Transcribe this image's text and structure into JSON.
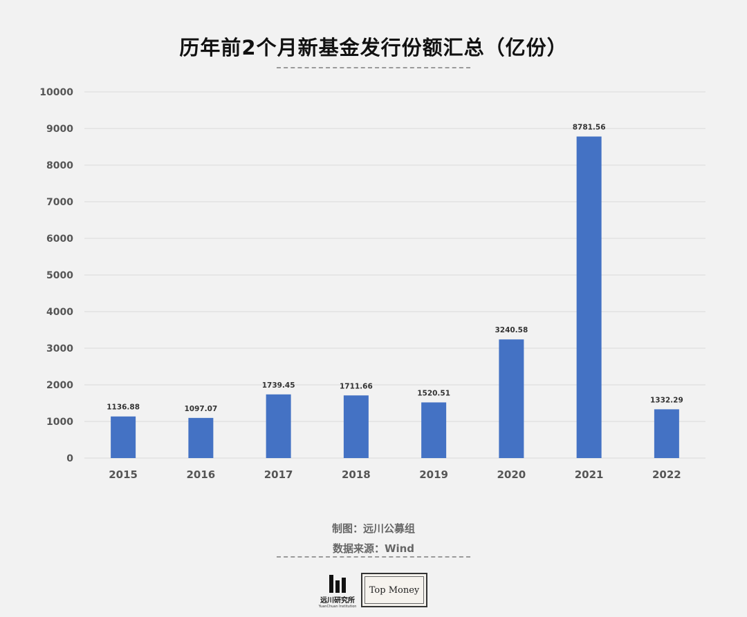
{
  "title": "历年前2个月新基金发行份额汇总（亿份）",
  "footer": {
    "maker": "制图：远川公募组",
    "source": "数据来源：Wind"
  },
  "logos": {
    "yuanchuan_name": "远川研究所",
    "yuanchuan_sub": "YuanChuan Institution",
    "topmoney": "Top Money"
  },
  "colors": {
    "bar": "#4472c4",
    "grid": "#d9d9d9",
    "background": "#f2f2f2"
  },
  "chart_data": {
    "type": "bar",
    "title": "历年前2个月新基金发行份额汇总（亿份）",
    "categories": [
      "2015",
      "2016",
      "2017",
      "2018",
      "2019",
      "2020",
      "2021",
      "2022"
    ],
    "values": [
      1136.88,
      1097.07,
      1739.45,
      1711.66,
      1520.51,
      3240.58,
      8781.56,
      1332.29
    ],
    "value_labels": [
      "1136.88",
      "1097.07",
      "1739.45",
      "1711.66",
      "1520.51",
      "3240.58",
      "8781.56",
      "1332.29"
    ],
    "yticks": [
      0,
      1000,
      2000,
      3000,
      4000,
      5000,
      6000,
      7000,
      8000,
      9000,
      10000
    ],
    "ylim": [
      0,
      10000
    ],
    "xlabel": "",
    "ylabel": "",
    "grid": true,
    "legend": "none"
  }
}
